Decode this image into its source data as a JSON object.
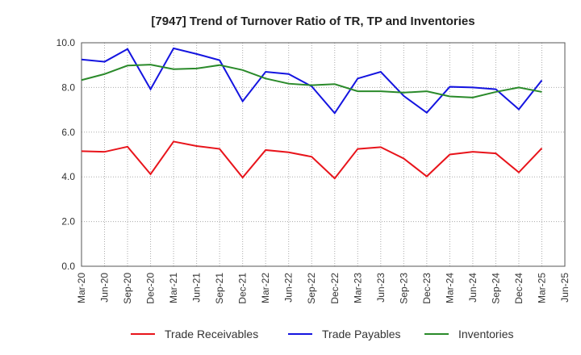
{
  "chart_data": {
    "type": "line",
    "title": "[7947]  Trend of Turnover Ratio of TR, TP and Inventories",
    "xlabel": "",
    "ylabel": "",
    "ylim": [
      0,
      10
    ],
    "y_ticks": [
      "0.0",
      "2.0",
      "4.0",
      "6.0",
      "8.0",
      "10.0"
    ],
    "x_tick_labels": [
      "Mar-20",
      "Jun-20",
      "Sep-20",
      "Dec-20",
      "Mar-21",
      "Jun-21",
      "Sep-21",
      "Dec-21",
      "Mar-22",
      "Jun-22",
      "Sep-22",
      "Dec-22",
      "Mar-23",
      "Jun-23",
      "Sep-23",
      "Dec-23",
      "Mar-24",
      "Jun-24",
      "Sep-24",
      "Dec-24",
      "Mar-25",
      "Jun-25"
    ],
    "categories": [
      "Mar-20",
      "Jun-20",
      "Sep-20",
      "Dec-20",
      "Mar-21",
      "Jun-21",
      "Sep-21",
      "Dec-21",
      "Mar-22",
      "Jun-22",
      "Sep-22",
      "Dec-22",
      "Mar-23",
      "Jun-23",
      "Sep-23",
      "Dec-23",
      "Mar-24",
      "Jun-24",
      "Sep-24",
      "Dec-24",
      "Mar-25"
    ],
    "grid": true,
    "legend_position": "bottom",
    "series": [
      {
        "name": "Trade Receivables",
        "color": "#e8141b",
        "values": [
          5.15,
          5.12,
          5.35,
          4.12,
          5.58,
          5.38,
          5.25,
          3.97,
          5.2,
          5.1,
          4.9,
          3.93,
          5.25,
          5.33,
          4.82,
          4.02,
          5.0,
          5.12,
          5.05,
          4.2,
          5.28
        ]
      },
      {
        "name": "Trade Payables",
        "color": "#1414e0",
        "values": [
          9.25,
          9.15,
          9.72,
          7.92,
          9.75,
          9.5,
          9.22,
          7.38,
          8.7,
          8.6,
          8.05,
          6.85,
          8.4,
          8.7,
          7.62,
          6.87,
          8.03,
          8.0,
          7.92,
          7.02,
          8.32
        ]
      },
      {
        "name": "Inventories",
        "color": "#2a8a2a",
        "values": [
          8.33,
          8.6,
          8.98,
          9.02,
          8.82,
          8.85,
          9.0,
          8.78,
          8.4,
          8.17,
          8.1,
          8.15,
          7.83,
          7.83,
          7.77,
          7.83,
          7.6,
          7.55,
          7.8,
          8.0,
          7.8
        ]
      }
    ]
  }
}
